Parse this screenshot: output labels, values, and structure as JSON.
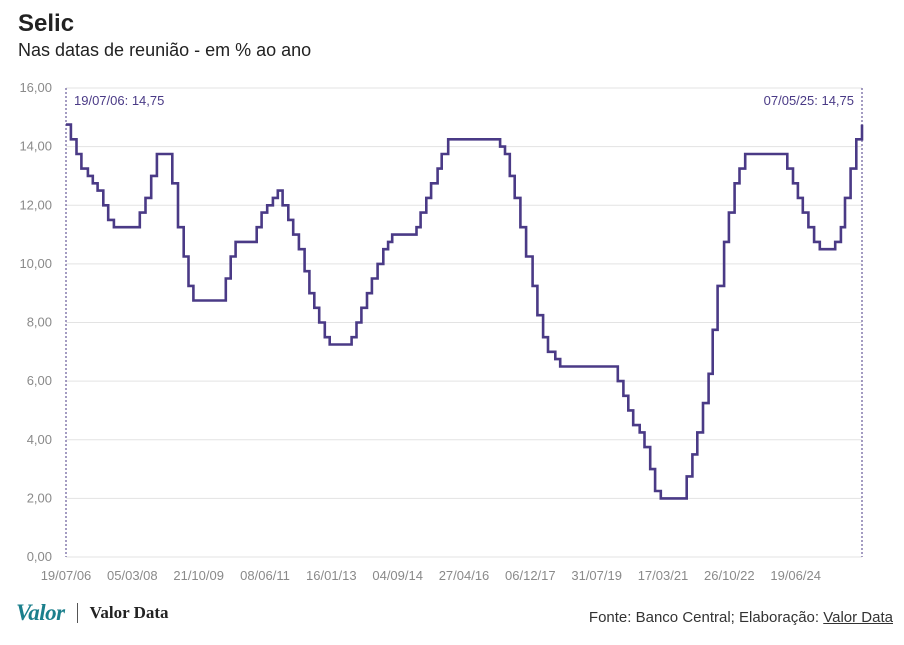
{
  "header": {
    "title": "Selic",
    "subtitle": "Nas datas de reunião - em % ao ano"
  },
  "footer": {
    "logo_valor": "Valor",
    "logo_valor_data": "Valor Data",
    "source_prefix": "Fonte: Banco Central; Elaboração: ",
    "source_link": "Valor Data"
  },
  "colors": {
    "line": "#4a3a86",
    "grid": "#e3e3e3",
    "axis_text": "#8a8a8a",
    "brand_valor": "#1b7f8c"
  },
  "chart_data": {
    "type": "line",
    "step": true,
    "title": "Selic",
    "subtitle": "Nas datas de reunião - em % ao ano",
    "ylim": [
      0,
      16
    ],
    "y_ticks": [
      "0,00",
      "2,00",
      "4,00",
      "6,00",
      "8,00",
      "10,00",
      "12,00",
      "14,00",
      "16,00"
    ],
    "x_ticks": [
      "19/07/06",
      "05/03/08",
      "21/10/09",
      "08/06/11",
      "16/01/13",
      "04/09/14",
      "27/04/16",
      "06/12/17",
      "31/07/19",
      "17/03/21",
      "26/10/22",
      "19/06/24"
    ],
    "grid": "horizontal",
    "annotations": [
      {
        "text": "19/07/06: 14,75",
        "date": "2006-07-19",
        "value": 14.75
      },
      {
        "text": "07/05/25: 14,75",
        "date": "2025-05-07",
        "value": 14.75
      }
    ],
    "series": [
      {
        "values": [
          [
            "2006-07-19",
            14.75
          ],
          [
            "2006-08-30",
            14.25
          ],
          [
            "2006-10-18",
            13.75
          ],
          [
            "2006-11-29",
            13.25
          ],
          [
            "2007-01-24",
            13.0
          ],
          [
            "2007-03-07",
            12.75
          ],
          [
            "2007-04-18",
            12.5
          ],
          [
            "2007-06-06",
            12.0
          ],
          [
            "2007-07-18",
            11.5
          ],
          [
            "2007-09-05",
            11.25
          ],
          [
            "2008-04-16",
            11.75
          ],
          [
            "2008-06-04",
            12.25
          ],
          [
            "2008-07-23",
            13.0
          ],
          [
            "2008-09-10",
            13.75
          ],
          [
            "2009-01-21",
            12.75
          ],
          [
            "2009-03-11",
            11.25
          ],
          [
            "2009-04-29",
            10.25
          ],
          [
            "2009-06-10",
            9.25
          ],
          [
            "2009-07-22",
            8.75
          ],
          [
            "2010-04-28",
            9.5
          ],
          [
            "2010-06-09",
            10.25
          ],
          [
            "2010-07-21",
            10.75
          ],
          [
            "2011-01-19",
            11.25
          ],
          [
            "2011-03-02",
            11.75
          ],
          [
            "2011-04-20",
            12.0
          ],
          [
            "2011-06-08",
            12.25
          ],
          [
            "2011-07-20",
            12.5
          ],
          [
            "2011-08-31",
            12.0
          ],
          [
            "2011-10-19",
            11.5
          ],
          [
            "2011-11-30",
            11.0
          ],
          [
            "2012-01-18",
            10.5
          ],
          [
            "2012-03-07",
            9.75
          ],
          [
            "2012-04-18",
            9.0
          ],
          [
            "2012-05-30",
            8.5
          ],
          [
            "2012-07-11",
            8.0
          ],
          [
            "2012-08-29",
            7.5
          ],
          [
            "2012-10-10",
            7.25
          ],
          [
            "2013-04-17",
            7.5
          ],
          [
            "2013-05-29",
            8.0
          ],
          [
            "2013-07-10",
            8.5
          ],
          [
            "2013-08-28",
            9.0
          ],
          [
            "2013-10-09",
            9.5
          ],
          [
            "2013-11-27",
            10.0
          ],
          [
            "2014-01-15",
            10.5
          ],
          [
            "2014-02-26",
            10.75
          ],
          [
            "2014-04-02",
            11.0
          ],
          [
            "2014-10-29",
            11.25
          ],
          [
            "2014-12-03",
            11.75
          ],
          [
            "2015-01-21",
            12.25
          ],
          [
            "2015-03-04",
            12.75
          ],
          [
            "2015-04-29",
            13.25
          ],
          [
            "2015-06-03",
            13.75
          ],
          [
            "2015-07-29",
            14.25
          ],
          [
            "2016-10-19",
            14.0
          ],
          [
            "2016-11-30",
            13.75
          ],
          [
            "2017-01-11",
            13.0
          ],
          [
            "2017-02-22",
            12.25
          ],
          [
            "2017-04-12",
            11.25
          ],
          [
            "2017-05-31",
            10.25
          ],
          [
            "2017-07-26",
            9.25
          ],
          [
            "2017-09-06",
            8.25
          ],
          [
            "2017-10-25",
            7.5
          ],
          [
            "2017-12-06",
            7.0
          ],
          [
            "2018-02-07",
            6.75
          ],
          [
            "2018-03-21",
            6.5
          ],
          [
            "2019-07-31",
            6.0
          ],
          [
            "2019-09-18",
            5.5
          ],
          [
            "2019-10-30",
            5.0
          ],
          [
            "2019-12-11",
            4.5
          ],
          [
            "2020-02-05",
            4.25
          ],
          [
            "2020-03-18",
            3.75
          ],
          [
            "2020-05-06",
            3.0
          ],
          [
            "2020-06-17",
            2.25
          ],
          [
            "2020-08-05",
            2.0
          ],
          [
            "2021-03-17",
            2.75
          ],
          [
            "2021-05-05",
            3.5
          ],
          [
            "2021-06-16",
            4.25
          ],
          [
            "2021-08-04",
            5.25
          ],
          [
            "2021-09-22",
            6.25
          ],
          [
            "2021-10-27",
            7.75
          ],
          [
            "2021-12-08",
            9.25
          ],
          [
            "2022-02-02",
            10.75
          ],
          [
            "2022-03-16",
            11.75
          ],
          [
            "2022-05-04",
            12.75
          ],
          [
            "2022-06-15",
            13.25
          ],
          [
            "2022-08-03",
            13.75
          ],
          [
            "2023-08-02",
            13.25
          ],
          [
            "2023-09-20",
            12.75
          ],
          [
            "2023-11-01",
            12.25
          ],
          [
            "2023-12-13",
            11.75
          ],
          [
            "2024-01-31",
            11.25
          ],
          [
            "2024-03-20",
            10.75
          ],
          [
            "2024-05-08",
            10.5
          ],
          [
            "2024-09-18",
            10.75
          ],
          [
            "2024-11-06",
            11.25
          ],
          [
            "2024-12-11",
            12.25
          ],
          [
            "2025-01-29",
            13.25
          ],
          [
            "2025-03-19",
            14.25
          ],
          [
            "2025-05-07",
            14.75
          ]
        ]
      }
    ]
  }
}
